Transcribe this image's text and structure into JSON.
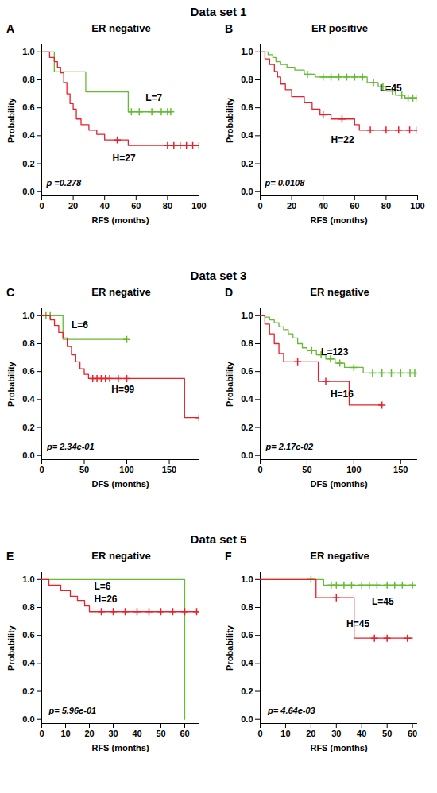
{
  "chart_data": [
    {
      "type": "line",
      "subtitle": "Data set 1",
      "panel": "A",
      "title": "ER negative",
      "x_label": "RFS (months)",
      "y_label": "Probability",
      "xlim": [
        0,
        100
      ],
      "xticks": [
        0,
        20,
        40,
        60,
        80,
        100
      ],
      "ylim": [
        -0.03,
        1.05
      ],
      "yticks": [
        {
          "value": 0,
          "label": "0.0"
        },
        0.2,
        0.4,
        0.6,
        0.8,
        {
          "value": 1,
          "label": "1.0"
        }
      ],
      "line_style": "step",
      "series": [
        {
          "name": "L=7",
          "color": "#66bb33",
          "marker": "plus",
          "x": [
            0,
            8,
            28,
            55,
            82
          ],
          "values": [
            1,
            0.857,
            0.714,
            0.571,
            0.571
          ],
          "censor_x": [
            57,
            62,
            70,
            76,
            80,
            82
          ],
          "censor_values": [
            0.571,
            0.571,
            0.571,
            0.571,
            0.571,
            0.571
          ],
          "label_at": [
            66,
            0.67
          ]
        },
        {
          "name": "H=27",
          "color": "#e8202a",
          "marker": "plus",
          "x": [
            0,
            5,
            8,
            10,
            12,
            14,
            16,
            18,
            20,
            22,
            25,
            30,
            35,
            40,
            55,
            100
          ],
          "values": [
            1,
            0.96,
            0.93,
            0.89,
            0.85,
            0.78,
            0.7,
            0.63,
            0.59,
            0.52,
            0.48,
            0.44,
            0.41,
            0.37,
            0.33,
            0.33
          ],
          "censor_x": [
            48,
            80,
            84,
            88,
            92,
            96,
            100
          ],
          "censor_values": [
            0.37,
            0.33,
            0.33,
            0.33,
            0.33,
            0.33,
            0.33
          ],
          "label_at": [
            45,
            0.24
          ]
        }
      ],
      "annotations": [
        {
          "text": "p =0.278",
          "x": 3,
          "y": 0.06
        }
      ]
    },
    {
      "type": "line",
      "panel": "B",
      "title": "ER positive",
      "x_label": "RFS (months)",
      "y_label": "Probability",
      "xlim": [
        0,
        100
      ],
      "xticks": [
        0,
        20,
        40,
        60,
        80,
        100
      ],
      "ylim": [
        -0.03,
        1.05
      ],
      "yticks": [
        {
          "value": 0,
          "label": "0.0"
        },
        0.2,
        0.4,
        0.6,
        0.8,
        {
          "value": 1,
          "label": "1.0"
        }
      ],
      "line_style": "step",
      "series": [
        {
          "name": "L=45",
          "color": "#66bb33",
          "marker": "plus",
          "x": [
            0,
            5,
            8,
            10,
            13,
            17,
            22,
            28,
            35,
            68,
            75,
            80,
            86,
            92,
            100
          ],
          "values": [
            1,
            0.98,
            0.96,
            0.93,
            0.91,
            0.89,
            0.87,
            0.84,
            0.82,
            0.78,
            0.75,
            0.72,
            0.69,
            0.67,
            0.67
          ],
          "censor_x": [
            30,
            40,
            45,
            50,
            55,
            60,
            65,
            72,
            78,
            84,
            90,
            94,
            97,
            100
          ],
          "censor_values": [
            0.84,
            0.82,
            0.82,
            0.82,
            0.82,
            0.82,
            0.82,
            0.78,
            0.75,
            0.72,
            0.69,
            0.67,
            0.67,
            0.67
          ],
          "label_at": [
            76,
            0.74
          ]
        },
        {
          "name": "H=22",
          "color": "#e8202a",
          "marker": "plus",
          "x": [
            0,
            3,
            6,
            9,
            11,
            13,
            16,
            20,
            28,
            33,
            38,
            45,
            60,
            63,
            100
          ],
          "values": [
            1,
            0.95,
            0.91,
            0.86,
            0.82,
            0.77,
            0.73,
            0.68,
            0.64,
            0.59,
            0.55,
            0.52,
            0.48,
            0.44,
            0.44
          ],
          "censor_x": [
            40,
            52,
            70,
            80,
            88,
            95,
            100
          ],
          "censor_values": [
            0.55,
            0.52,
            0.44,
            0.44,
            0.44,
            0.44,
            0.44
          ],
          "label_at": [
            45,
            0.37
          ]
        }
      ],
      "annotations": [
        {
          "text": "p= 0.0108",
          "x": 3,
          "y": 0.06
        }
      ]
    },
    {
      "type": "line",
      "subtitle": "Data set 3",
      "panel": "C",
      "title": "ER negative",
      "x_label": "DFS (months)",
      "y_label": "Probability",
      "xlim": [
        0,
        185
      ],
      "xticks": [
        0,
        50,
        100,
        150
      ],
      "ylim": [
        -0.03,
        1.05
      ],
      "yticks": [
        {
          "value": 0,
          "label": "0.0"
        },
        0.2,
        0.4,
        0.6,
        0.8,
        {
          "value": 1,
          "label": "1.0"
        }
      ],
      "line_style": "step",
      "series": [
        {
          "name": "L=6",
          "color": "#66bb33",
          "marker": "plus",
          "x": [
            0,
            25,
            100
          ],
          "values": [
            1,
            0.83,
            0.83
          ],
          "censor_x": [
            5,
            10,
            100
          ],
          "censor_values": [
            1,
            1,
            0.83
          ],
          "label_at": [
            35,
            0.93
          ]
        },
        {
          "name": "H=99",
          "color": "#e8202a",
          "marker": "plus",
          "x": [
            0,
            10,
            15,
            20,
            25,
            30,
            35,
            40,
            45,
            50,
            55,
            168,
            185
          ],
          "values": [
            1,
            0.97,
            0.93,
            0.88,
            0.84,
            0.78,
            0.72,
            0.67,
            0.62,
            0.58,
            0.55,
            0.27,
            0.27
          ],
          "censor_x": [
            60,
            65,
            70,
            75,
            80,
            90,
            100,
            185
          ],
          "censor_values": [
            0.55,
            0.55,
            0.55,
            0.55,
            0.55,
            0.55,
            0.55,
            0.27
          ],
          "label_at": [
            82,
            0.47
          ]
        }
      ],
      "annotations": [
        {
          "text": "p= 2.34e-01",
          "x": 6,
          "y": 0.06
        }
      ]
    },
    {
      "type": "line",
      "panel": "D",
      "title": "ER negative",
      "x_label": "DFS (months)",
      "y_label": "Probability",
      "xlim": [
        0,
        168
      ],
      "xticks": [
        0,
        50,
        100,
        150
      ],
      "ylim": [
        -0.03,
        1.05
      ],
      "yticks": [
        {
          "value": 0,
          "label": "0.0"
        },
        0.2,
        0.4,
        0.6,
        0.8,
        {
          "value": 1,
          "label": "1.0"
        }
      ],
      "line_style": "step",
      "series": [
        {
          "name": "L=123",
          "color": "#66bb33",
          "marker": "plus",
          "x": [
            0,
            5,
            10,
            15,
            20,
            25,
            30,
            35,
            40,
            45,
            50,
            60,
            70,
            80,
            90,
            110,
            165
          ],
          "values": [
            1,
            0.99,
            0.97,
            0.95,
            0.92,
            0.9,
            0.87,
            0.84,
            0.8,
            0.77,
            0.75,
            0.72,
            0.69,
            0.66,
            0.63,
            0.59,
            0.59
          ],
          "censor_x": [
            55,
            65,
            75,
            85,
            100,
            120,
            130,
            140,
            150,
            160,
            165
          ],
          "censor_values": [
            0.75,
            0.72,
            0.69,
            0.66,
            0.63,
            0.59,
            0.59,
            0.59,
            0.59,
            0.59,
            0.59
          ],
          "label_at": [
            65,
            0.74
          ]
        },
        {
          "name": "H=16",
          "color": "#e8202a",
          "marker": "plus",
          "x": [
            0,
            5,
            10,
            15,
            20,
            25,
            62,
            95,
            130
          ],
          "values": [
            1,
            0.94,
            0.87,
            0.8,
            0.73,
            0.67,
            0.53,
            0.36,
            0.36
          ],
          "censor_x": [
            40,
            70,
            130
          ],
          "censor_values": [
            0.67,
            0.53,
            0.36
          ],
          "label_at": [
            75,
            0.44
          ]
        }
      ],
      "annotations": [
        {
          "text": "p= 2.17e-02",
          "x": 6,
          "y": 0.06
        }
      ]
    },
    {
      "type": "line",
      "subtitle": "Data set 5",
      "panel": "E",
      "title": "ER negative",
      "x_label": "RFS (months)",
      "y_label": "Probability",
      "xlim": [
        0,
        66
      ],
      "xticks": [
        0,
        10,
        20,
        30,
        40,
        50,
        60
      ],
      "ylim": [
        -0.03,
        1.05
      ],
      "yticks": [
        {
          "value": 0,
          "label": "0.0"
        },
        0.2,
        0.4,
        0.6,
        0.8,
        {
          "value": 1,
          "label": "1.0"
        }
      ],
      "line_style": "step",
      "series": [
        {
          "name": "L=6",
          "color": "#66bb33",
          "marker": "plus",
          "x": [
            0,
            60
          ],
          "values": [
            1,
            0
          ],
          "censor_x": [],
          "censor_values": [],
          "label_at": [
            22,
            0.95
          ]
        },
        {
          "name": "H=26",
          "color": "#e8202a",
          "marker": "plus",
          "x": [
            0,
            3,
            8,
            12,
            15,
            18,
            20,
            66
          ],
          "values": [
            1,
            0.96,
            0.92,
            0.88,
            0.85,
            0.81,
            0.77,
            0.77
          ],
          "censor_x": [
            25,
            30,
            35,
            40,
            45,
            50,
            55,
            60,
            65
          ],
          "censor_values": [
            0.77,
            0.77,
            0.77,
            0.77,
            0.77,
            0.77,
            0.77,
            0.77,
            0.77
          ],
          "label_at": [
            22,
            0.86
          ]
        }
      ],
      "annotations": [
        {
          "text": "p= 5.96e-01",
          "x": 3,
          "y": 0.06
        }
      ]
    },
    {
      "type": "line",
      "panel": "F",
      "title": "ER negative",
      "x_label": "RFS (months)",
      "y_label": "Probability",
      "xlim": [
        0,
        62
      ],
      "xticks": [
        0,
        10,
        20,
        30,
        40,
        50,
        60
      ],
      "ylim": [
        -0.03,
        1.05
      ],
      "yticks": [
        {
          "value": 0,
          "label": "0.0"
        },
        0.2,
        0.4,
        0.6,
        0.8,
        {
          "value": 1,
          "label": "1.0"
        }
      ],
      "line_style": "step",
      "series": [
        {
          "name": "L=45",
          "color": "#66bb33",
          "marker": "plus",
          "x": [
            0,
            25,
            60
          ],
          "values": [
            1,
            0.96,
            0.96
          ],
          "censor_x": [
            20,
            28,
            30,
            33,
            36,
            40,
            43,
            46,
            50,
            53,
            56,
            60
          ],
          "censor_values": [
            1,
            0.96,
            0.96,
            0.96,
            0.96,
            0.96,
            0.96,
            0.96,
            0.96,
            0.96,
            0.96,
            0.96
          ],
          "label_at": [
            44,
            0.84
          ]
        },
        {
          "name": "H=45",
          "color": "#e8202a",
          "marker": "plus",
          "x": [
            0,
            22,
            37,
            60
          ],
          "values": [
            1,
            0.87,
            0.58,
            0.58
          ],
          "censor_x": [
            30,
            45,
            50,
            58
          ],
          "censor_values": [
            0.87,
            0.58,
            0.58,
            0.58
          ],
          "label_at": [
            34,
            0.68
          ]
        }
      ],
      "annotations": [
        {
          "text": "p= 4.64e-03",
          "x": 3,
          "y": 0.06
        }
      ]
    }
  ]
}
